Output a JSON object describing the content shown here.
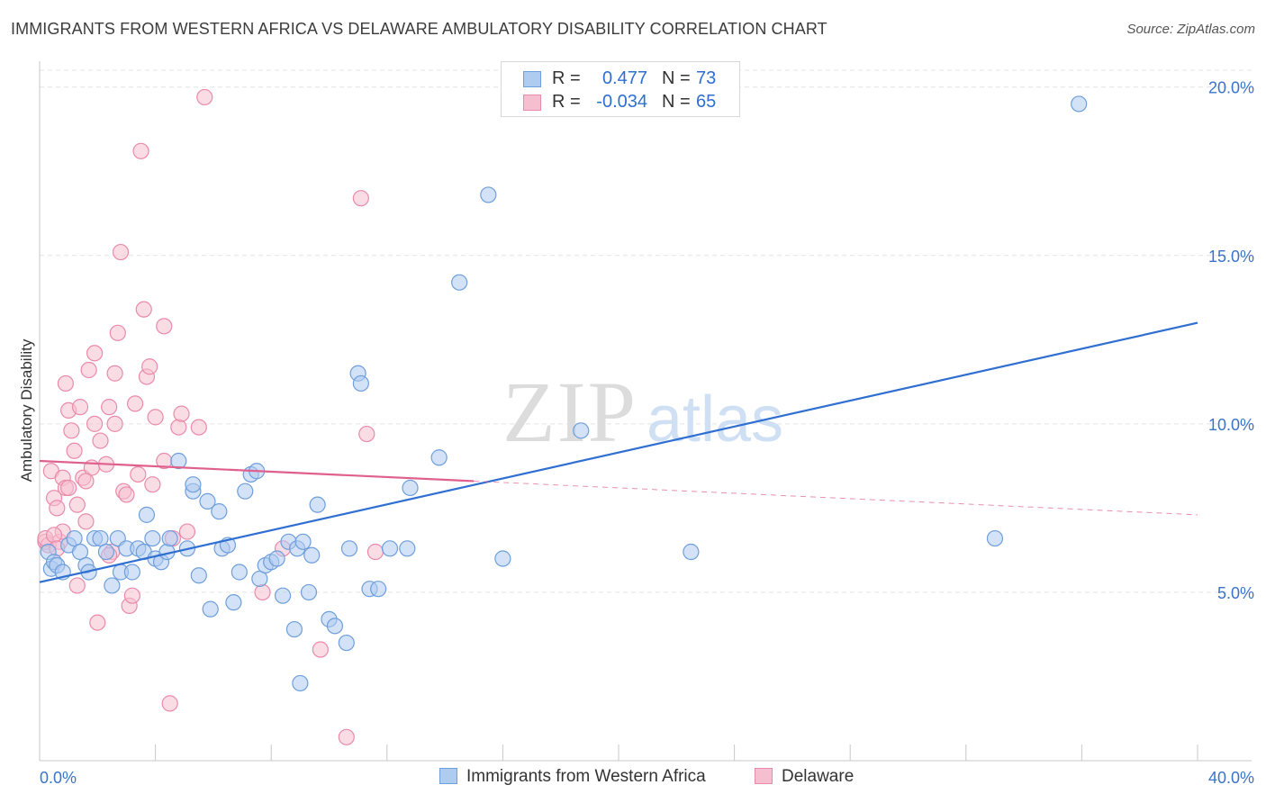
{
  "header": {
    "title": "IMMIGRANTS FROM WESTERN AFRICA VS DELAWARE AMBULATORY DISABILITY CORRELATION CHART",
    "source": "Source: ZipAtlas.com"
  },
  "colors": {
    "blue_fill": "#aecbf0",
    "blue_stroke": "#6e9fdc",
    "blue_line": "#2e6fd1",
    "pink_fill": "#f6bfd0",
    "pink_stroke": "#ea8aab",
    "pink_line": "#e0608d",
    "grid": "#e4e4e4",
    "axis_text": "#3a74c9"
  },
  "legend": {
    "rows": [
      {
        "r_label": "R =",
        "r_value": "0.477",
        "n_label": "N =",
        "n_value": "73"
      },
      {
        "r_label": "R =",
        "r_value": "-0.034",
        "n_label": "N =",
        "n_value": "65"
      }
    ]
  },
  "bottom_legend": {
    "series_a": "Immigrants from Western Africa",
    "series_b": "Delaware"
  },
  "chart_data": {
    "type": "scatter",
    "title": "IMMIGRANTS FROM WESTERN AFRICA VS DELAWARE AMBULATORY DISABILITY CORRELATION CHART",
    "xlabel": "",
    "ylabel": "Ambulatory Disability",
    "xlim": [
      0,
      40
    ],
    "ylim": [
      0,
      20.5
    ],
    "x_tick_labels": [
      "0.0%",
      "40.0%"
    ],
    "y_ticks": [
      5,
      10,
      15,
      20
    ],
    "y_tick_labels": [
      "5.0%",
      "10.0%",
      "15.0%",
      "20.0%"
    ],
    "watermark": {
      "part1": "ZIP",
      "part2": "atlas"
    },
    "series": [
      {
        "name": "Immigrants from Western Africa",
        "color": "#aecbf0",
        "trend": {
          "x0": 0,
          "y0": 5.3,
          "x1": 40,
          "y1": 13.0,
          "style": "solid"
        },
        "points": [
          [
            0.3,
            6.2
          ],
          [
            0.4,
            5.7
          ],
          [
            0.5,
            5.9
          ],
          [
            0.6,
            5.8
          ],
          [
            0.8,
            5.6
          ],
          [
            1.0,
            6.4
          ],
          [
            1.2,
            6.6
          ],
          [
            1.4,
            6.2
          ],
          [
            1.6,
            5.8
          ],
          [
            1.7,
            5.6
          ],
          [
            1.9,
            6.6
          ],
          [
            2.1,
            6.6
          ],
          [
            2.3,
            6.2
          ],
          [
            2.5,
            5.2
          ],
          [
            2.7,
            6.6
          ],
          [
            2.8,
            5.6
          ],
          [
            3.0,
            6.3
          ],
          [
            3.2,
            5.6
          ],
          [
            3.4,
            6.3
          ],
          [
            3.6,
            6.2
          ],
          [
            3.7,
            7.3
          ],
          [
            3.9,
            6.6
          ],
          [
            4.0,
            6.0
          ],
          [
            4.2,
            5.9
          ],
          [
            4.4,
            6.2
          ],
          [
            4.5,
            6.6
          ],
          [
            4.8,
            8.9
          ],
          [
            5.1,
            6.3
          ],
          [
            5.3,
            8.0
          ],
          [
            5.3,
            8.2
          ],
          [
            5.5,
            5.5
          ],
          [
            5.8,
            7.7
          ],
          [
            5.9,
            4.5
          ],
          [
            6.2,
            7.4
          ],
          [
            6.3,
            6.3
          ],
          [
            6.5,
            6.4
          ],
          [
            6.7,
            4.7
          ],
          [
            6.9,
            5.6
          ],
          [
            7.1,
            8.0
          ],
          [
            7.3,
            8.5
          ],
          [
            7.5,
            8.6
          ],
          [
            7.6,
            5.4
          ],
          [
            7.8,
            5.8
          ],
          [
            8.0,
            5.9
          ],
          [
            8.2,
            6.0
          ],
          [
            8.4,
            4.9
          ],
          [
            8.6,
            6.5
          ],
          [
            8.8,
            3.9
          ],
          [
            8.9,
            6.3
          ],
          [
            9.1,
            6.5
          ],
          [
            9.3,
            5.0
          ],
          [
            9.4,
            6.1
          ],
          [
            9.6,
            7.6
          ],
          [
            10.0,
            4.2
          ],
          [
            10.2,
            4.0
          ],
          [
            10.6,
            3.5
          ],
          [
            10.7,
            6.3
          ],
          [
            11.0,
            11.5
          ],
          [
            11.1,
            11.2
          ],
          [
            11.4,
            5.1
          ],
          [
            11.7,
            5.1
          ],
          [
            12.1,
            6.3
          ],
          [
            12.7,
            6.3
          ],
          [
            12.8,
            8.1
          ],
          [
            13.8,
            9.0
          ],
          [
            14.5,
            14.2
          ],
          [
            15.5,
            16.8
          ],
          [
            16.0,
            6.0
          ],
          [
            18.7,
            9.8
          ],
          [
            22.5,
            6.2
          ],
          [
            9.0,
            2.3
          ],
          [
            33.0,
            6.6
          ],
          [
            35.9,
            19.5
          ]
        ]
      },
      {
        "name": "Delaware",
        "color": "#f6bfd0",
        "trend": {
          "x0": 0,
          "y0": 8.9,
          "x1": 15,
          "y1": 8.3,
          "style": "solid",
          "dash_x1": 40,
          "dash_y1": 7.3
        },
        "points": [
          [
            0.2,
            6.5
          ],
          [
            0.3,
            6.4
          ],
          [
            0.4,
            8.6
          ],
          [
            0.5,
            7.8
          ],
          [
            0.6,
            7.5
          ],
          [
            0.7,
            6.5
          ],
          [
            0.8,
            8.4
          ],
          [
            0.8,
            6.8
          ],
          [
            0.9,
            8.1
          ],
          [
            1.0,
            8.1
          ],
          [
            0.9,
            11.2
          ],
          [
            1.0,
            10.4
          ],
          [
            1.1,
            9.8
          ],
          [
            1.2,
            9.2
          ],
          [
            1.3,
            7.6
          ],
          [
            1.3,
            5.2
          ],
          [
            1.4,
            10.5
          ],
          [
            1.5,
            8.4
          ],
          [
            1.6,
            7.1
          ],
          [
            1.7,
            11.6
          ],
          [
            1.8,
            8.7
          ],
          [
            1.9,
            12.1
          ],
          [
            1.9,
            10.0
          ],
          [
            2.0,
            4.1
          ],
          [
            2.1,
            9.5
          ],
          [
            2.3,
            8.8
          ],
          [
            2.4,
            10.5
          ],
          [
            2.5,
            6.2
          ],
          [
            2.6,
            11.5
          ],
          [
            2.6,
            10.0
          ],
          [
            2.7,
            12.7
          ],
          [
            2.8,
            15.1
          ],
          [
            2.9,
            8.0
          ],
          [
            3.0,
            7.9
          ],
          [
            3.1,
            4.6
          ],
          [
            3.2,
            4.9
          ],
          [
            3.3,
            10.6
          ],
          [
            3.4,
            8.5
          ],
          [
            3.5,
            18.1
          ],
          [
            3.6,
            13.4
          ],
          [
            3.7,
            11.4
          ],
          [
            3.8,
            11.7
          ],
          [
            3.9,
            8.2
          ],
          [
            4.0,
            10.2
          ],
          [
            4.3,
            12.9
          ],
          [
            4.3,
            8.9
          ],
          [
            4.5,
            1.7
          ],
          [
            4.6,
            6.6
          ],
          [
            4.8,
            9.9
          ],
          [
            4.9,
            10.3
          ],
          [
            5.1,
            6.8
          ],
          [
            5.5,
            9.9
          ],
          [
            5.7,
            19.7
          ],
          [
            7.7,
            5.0
          ],
          [
            8.4,
            6.3
          ],
          [
            9.7,
            3.3
          ],
          [
            10.6,
            0.7
          ],
          [
            11.1,
            16.7
          ],
          [
            11.3,
            9.7
          ],
          [
            11.6,
            6.2
          ],
          [
            0.2,
            6.6
          ],
          [
            0.5,
            6.7
          ],
          [
            2.4,
            6.1
          ],
          [
            1.6,
            8.3
          ],
          [
            0.6,
            6.3
          ]
        ]
      }
    ]
  }
}
